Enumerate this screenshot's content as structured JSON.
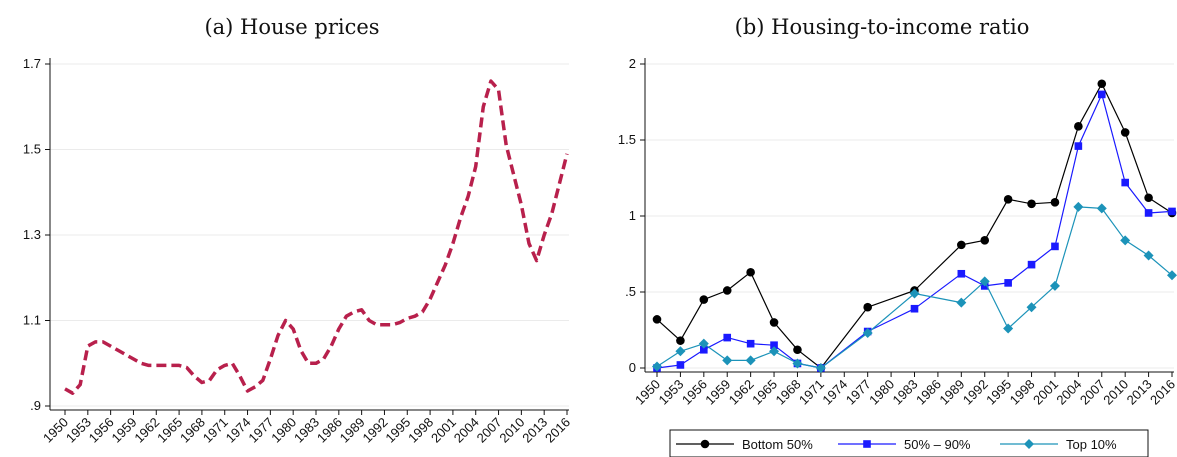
{
  "chart_data": [
    {
      "type": "line",
      "title": "(a) House prices",
      "xlabel": "",
      "ylabel": "",
      "xlim": [
        1950,
        2016
      ],
      "ylim": [
        0.9,
        1.7
      ],
      "x_ticks": [
        "1950",
        "1953",
        "1956",
        "1959",
        "1962",
        "1965",
        "1968",
        "1971",
        "1974",
        "1977",
        "1980",
        "1983",
        "1986",
        "1989",
        "1992",
        "1995",
        "1998",
        "2001",
        "2004",
        "2007",
        "2010",
        "2013",
        "2016"
      ],
      "y_ticks": [
        {
          "value": 0.9,
          "label": ".9"
        },
        {
          "value": 1.1,
          "label": "1.1"
        },
        {
          "value": 1.3,
          "label": "1.3"
        },
        {
          "value": 1.5,
          "label": "1.5"
        },
        {
          "value": 1.7,
          "label": "1.7"
        }
      ],
      "grid": true,
      "colors": {
        "line": "#b8204c"
      },
      "line_style": "dashed",
      "series": [
        {
          "x": [
            1950,
            1951,
            1952,
            1953,
            1954,
            1955,
            1956,
            1957,
            1958,
            1959,
            1960,
            1961,
            1962,
            1963,
            1964,
            1965,
            1966,
            1967,
            1968,
            1969,
            1970,
            1971,
            1972,
            1973,
            1974,
            1975,
            1976,
            1977,
            1978,
            1979,
            1980,
            1981,
            1982,
            1983,
            1984,
            1985,
            1986,
            1987,
            1988,
            1989,
            1990,
            1991,
            1992,
            1993,
            1994,
            1995,
            1996,
            1997,
            1998,
            1999,
            2000,
            2001,
            2002,
            2003,
            2004,
            2005,
            2006,
            2007,
            2008,
            2009,
            2010,
            2011,
            2012,
            2013,
            2014,
            2015,
            2016
          ],
          "values": [
            0.94,
            0.93,
            0.95,
            1.04,
            1.05,
            1.05,
            1.04,
            1.03,
            1.02,
            1.01,
            1.0,
            0.995,
            0.995,
            0.995,
            0.995,
            0.995,
            0.99,
            0.97,
            0.955,
            0.96,
            0.985,
            0.995,
            1.0,
            0.97,
            0.935,
            0.945,
            0.96,
            1.01,
            1.065,
            1.1,
            1.08,
            1.03,
            1.0,
            1.0,
            1.01,
            1.04,
            1.08,
            1.11,
            1.12,
            1.125,
            1.1,
            1.09,
            1.09,
            1.09,
            1.095,
            1.105,
            1.11,
            1.12,
            1.15,
            1.19,
            1.23,
            1.28,
            1.34,
            1.39,
            1.46,
            1.6,
            1.66,
            1.64,
            1.51,
            1.44,
            1.37,
            1.28,
            1.24,
            1.3,
            1.35,
            1.42,
            1.49
          ]
        }
      ]
    },
    {
      "type": "line",
      "title": "(b) Housing-to-income ratio",
      "xlabel": "",
      "ylabel": "",
      "xlim": [
        1950,
        2016
      ],
      "ylim": [
        0,
        2
      ],
      "x_ticks": [
        "1950",
        "1953",
        "1956",
        "1959",
        "1962",
        "1965",
        "1968",
        "1971",
        "1974",
        "1977",
        "1980",
        "1983",
        "1986",
        "1989",
        "1992",
        "1995",
        "1998",
        "2001",
        "2004",
        "2007",
        "2010",
        "2013",
        "2016"
      ],
      "y_ticks": [
        {
          "value": 0,
          "label": "0"
        },
        {
          "value": 0.5,
          "label": ".5"
        },
        {
          "value": 1,
          "label": "1"
        },
        {
          "value": 1.5,
          "label": "1.5"
        },
        {
          "value": 2,
          "label": "2"
        }
      ],
      "grid": true,
      "legend_position": "bottom",
      "series": [
        {
          "name": "Bottom 50%",
          "color": "#000000",
          "marker": "circle",
          "x": [
            1950,
            1953,
            1956,
            1959,
            1962,
            1965,
            1968,
            1971,
            1977,
            1983,
            1989,
            1992,
            1995,
            1998,
            2001,
            2004,
            2007,
            2010,
            2013,
            2016
          ],
          "values": [
            0.32,
            0.18,
            0.45,
            0.51,
            0.63,
            0.3,
            0.12,
            0.0,
            0.4,
            0.51,
            0.81,
            0.84,
            1.11,
            1.08,
            1.09,
            1.59,
            1.87,
            1.55,
            1.12,
            1.02
          ]
        },
        {
          "name": "50% – 90%",
          "color": "#1a1aff",
          "marker": "square",
          "x": [
            1950,
            1953,
            1956,
            1959,
            1962,
            1965,
            1968,
            1971,
            1977,
            1983,
            1989,
            1992,
            1995,
            1998,
            2001,
            2004,
            2007,
            2010,
            2013,
            2016
          ],
          "values": [
            0.0,
            0.02,
            0.12,
            0.2,
            0.16,
            0.15,
            0.03,
            0.0,
            0.24,
            0.39,
            0.62,
            0.54,
            0.56,
            0.68,
            0.8,
            1.46,
            1.8,
            1.22,
            1.02,
            1.03
          ]
        },
        {
          "name": "Top 10%",
          "color": "#1c93b9",
          "marker": "diamond",
          "x": [
            1950,
            1953,
            1956,
            1959,
            1962,
            1965,
            1968,
            1971,
            1977,
            1983,
            1989,
            1992,
            1995,
            1998,
            2001,
            2004,
            2007,
            2010,
            2013,
            2016
          ],
          "values": [
            0.01,
            0.11,
            0.16,
            0.05,
            0.05,
            0.11,
            0.03,
            0.0,
            0.23,
            0.49,
            0.43,
            0.57,
            0.26,
            0.4,
            0.54,
            1.06,
            1.05,
            0.84,
            0.74,
            0.61
          ]
        }
      ]
    }
  ]
}
